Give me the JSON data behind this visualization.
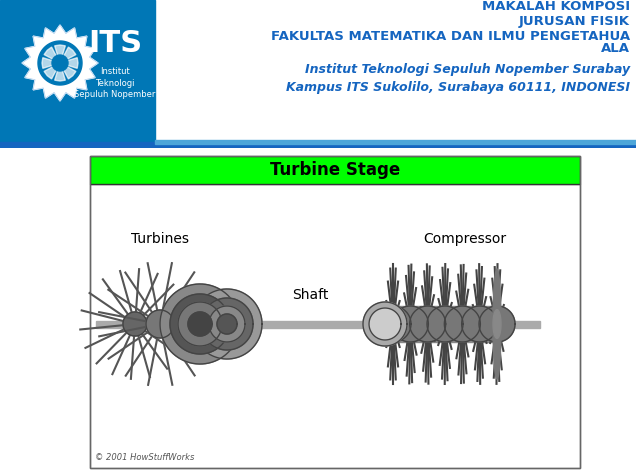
{
  "header_bg_blue": "#0077b6",
  "header_text_bold_color": "#1565C0",
  "header_bold_lines": [
    "MAKALAH KOMPOSI",
    "JURUSAN FISIK",
    "FAKULTAS MATEMATIKA DAN ILMU PENGETAHUA",
    "ALA"
  ],
  "header_italic_lines": [
    "Institut Teknologi Sepuluh Nopember Surabay",
    "Kampus ITS Sukolilo, Surabaya 60111, INDONESI"
  ],
  "logo_text_small": [
    "Institut",
    "Teknologi",
    "Sepuluh Nopember"
  ],
  "turbine_title": "Turbine Stage",
  "turbine_title_bg": "#00FF00",
  "turbines_label": "Turbines",
  "compressor_label": "Compressor",
  "shaft_label": "Shaft",
  "copyright_text": "© 2001 HowStuffWorks",
  "fig_bg": "#ffffff",
  "diagram_border_color": "#666666",
  "shaft_color": "#aaaaaa",
  "blade_dark": "#555555",
  "blade_mid": "#777777",
  "blade_light": "#999999",
  "hub_color": "#666666",
  "header_divider_dark": "#1565C0",
  "header_divider_light": "#4da6d9"
}
